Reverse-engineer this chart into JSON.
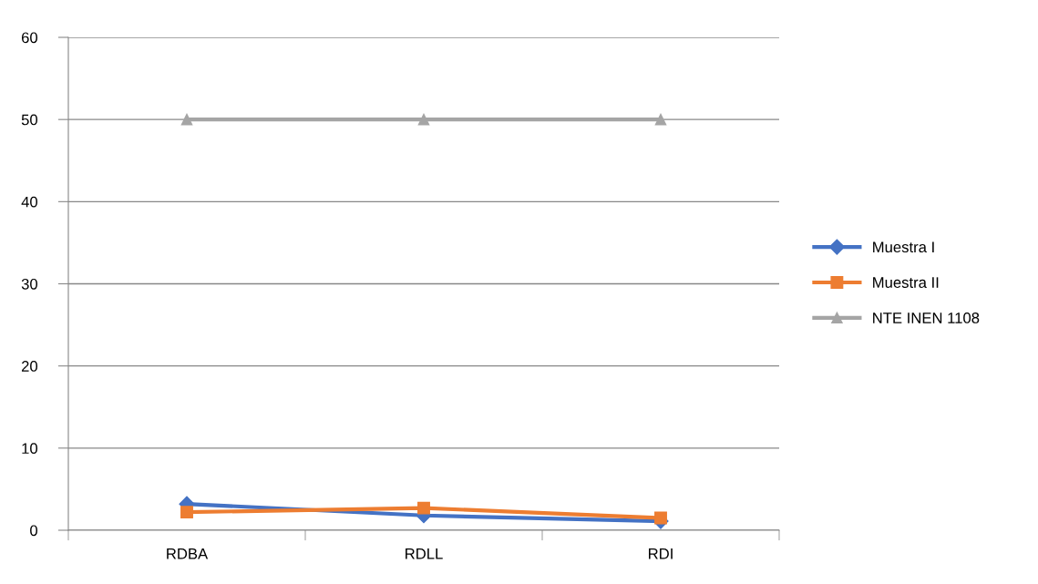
{
  "chart_data": {
    "type": "line",
    "categories": [
      "RDBA",
      "RDLL",
      "RDI"
    ],
    "series": [
      {
        "name": "Muestra I",
        "color": "#4472c4",
        "marker": "diamond",
        "values": [
          3.2,
          1.8,
          1.1
        ]
      },
      {
        "name": "Muestra II",
        "color": "#ed7d31",
        "marker": "square",
        "values": [
          2.2,
          2.7,
          1.5
        ]
      },
      {
        "name": "NTE INEN 1108",
        "color": "#a5a5a5",
        "marker": "triangle",
        "values": [
          50,
          50,
          50
        ]
      }
    ],
    "ylim": [
      0,
      60
    ],
    "yticks": [
      0,
      10,
      20,
      30,
      40,
      50,
      60
    ],
    "grid": "y",
    "legend": "right"
  }
}
